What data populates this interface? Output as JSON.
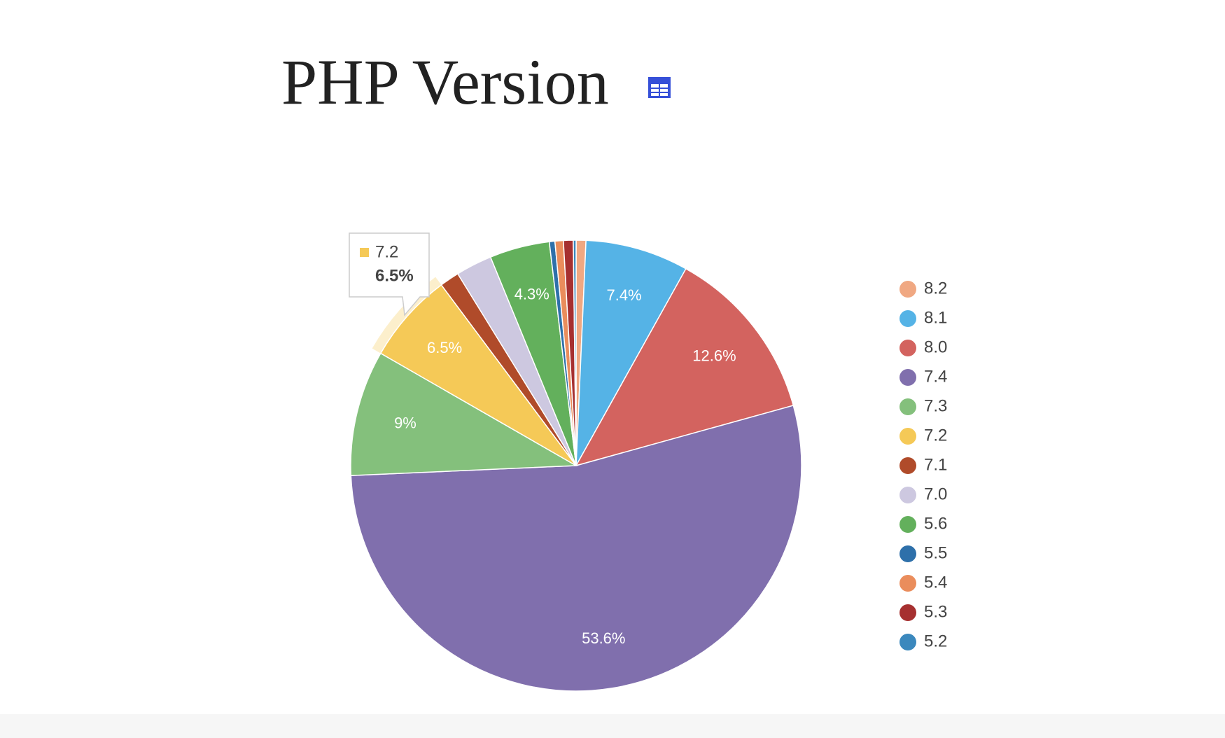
{
  "chart_data": {
    "type": "pie",
    "title": "PHP Version",
    "categories": [
      "8.2",
      "8.1",
      "8.0",
      "7.4",
      "7.3",
      "7.2",
      "7.1",
      "7.0",
      "5.6",
      "5.5",
      "5.4",
      "5.3",
      "5.2"
    ],
    "values": [
      0.7,
      7.4,
      12.6,
      53.6,
      9,
      6.5,
      1.4,
      2.6,
      4.3,
      0.4,
      0.6,
      0.7,
      0.2
    ],
    "value_labels": [
      null,
      "7.4%",
      "12.6%",
      "53.6%",
      "9%",
      "6.5%",
      null,
      null,
      "4.3%",
      null,
      null,
      null,
      null
    ],
    "colors": [
      "#f0a882",
      "#55b3e6",
      "#d3635f",
      "#806fad",
      "#84c07c",
      "#f5c957",
      "#b04b2a",
      "#cdc8e0",
      "#63b05c",
      "#2e70aa",
      "#ea8d5c",
      "#a63030",
      "#3b88bd"
    ],
    "highlight": 5
  }
}
